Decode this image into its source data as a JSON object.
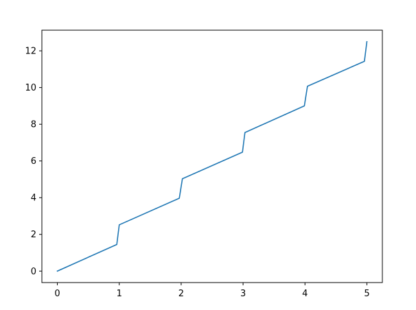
{
  "chart_data": {
    "type": "line",
    "title": "",
    "xlabel": "",
    "ylabel": "",
    "xlim": [
      -0.25,
      5.25
    ],
    "ylim": [
      -0.625,
      13.125
    ],
    "x_ticks": [
      0,
      1,
      2,
      3,
      4,
      5
    ],
    "x_tick_labels": [
      "0",
      "1",
      "2",
      "3",
      "4",
      "5"
    ],
    "y_ticks": [
      0,
      2,
      4,
      6,
      8,
      10,
      12
    ],
    "y_tick_labels": [
      "0",
      "2",
      "4",
      "6",
      "8",
      "10",
      "12"
    ],
    "grid": false,
    "legend": "none",
    "series": [
      {
        "color": "#1f77b4",
        "x": [
          0,
          0.96,
          1.0,
          1.97,
          2.02,
          2.99,
          3.03,
          3.99,
          4.04,
          4.96,
          5.0
        ],
        "y": [
          0,
          1.45,
          2.52,
          3.97,
          5.03,
          6.48,
          7.55,
          9.0,
          10.07,
          11.43,
          12.5
        ]
      }
    ]
  }
}
